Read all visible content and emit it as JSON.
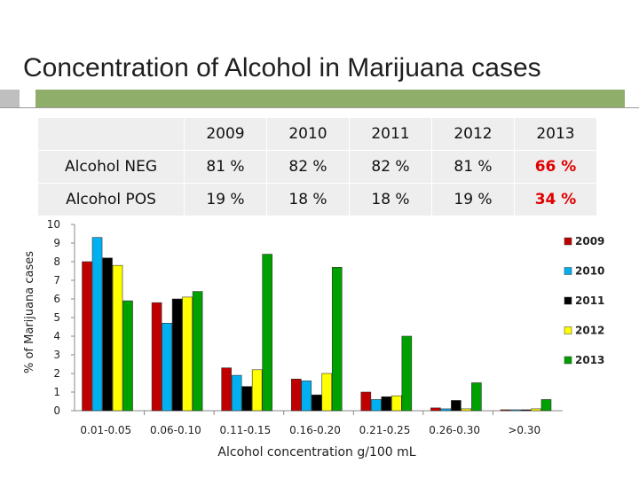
{
  "title": "Concentration of Alcohol in Marijuana cases",
  "summary_table": {
    "years": [
      "2009",
      "2010",
      "2011",
      "2012",
      "2013"
    ],
    "rows": [
      {
        "label": "Alcohol NEG",
        "values": [
          "81 %",
          "82 %",
          "82 %",
          "81 %",
          "66 %"
        ]
      },
      {
        "label": "Alcohol POS",
        "values": [
          "19 %",
          "18 %",
          "18 %",
          "19 %",
          "34 %"
        ]
      }
    ],
    "highlight_color": "#e00000"
  },
  "chart_data": {
    "type": "bar",
    "title": "",
    "xlabel": "Alcohol concentration g/100 mL",
    "ylabel": "% of Marijuana cases",
    "ylim": [
      0,
      10
    ],
    "yticks": [
      "0",
      "1",
      "2",
      "3",
      "4",
      "5",
      "6",
      "7",
      "8",
      "9",
      "10"
    ],
    "categories": [
      "0.01-0.05",
      "0.06-0.10",
      "0.11-0.15",
      "0.16-0.20",
      "0.21-0.25",
      "0.26-0.30",
      ">0.30"
    ],
    "series": [
      {
        "name": "2009",
        "color": "#c00000",
        "values": [
          8.0,
          5.8,
          2.3,
          1.7,
          1.0,
          0.15,
          0.05
        ]
      },
      {
        "name": "2010",
        "color": "#00b0f0",
        "values": [
          9.3,
          4.7,
          1.9,
          1.6,
          0.6,
          0.1,
          0.05
        ]
      },
      {
        "name": "2011",
        "color": "#000000",
        "values": [
          8.2,
          6.0,
          1.3,
          0.85,
          0.75,
          0.55,
          0.05
        ]
      },
      {
        "name": "2012",
        "color": "#ffff00",
        "values": [
          7.8,
          6.1,
          2.2,
          2.0,
          0.8,
          0.1,
          0.1
        ]
      },
      {
        "name": "2013",
        "color": "#00a000",
        "values": [
          5.9,
          6.4,
          8.4,
          7.7,
          4.0,
          1.5,
          0.6
        ]
      }
    ],
    "legend_position": "right"
  }
}
